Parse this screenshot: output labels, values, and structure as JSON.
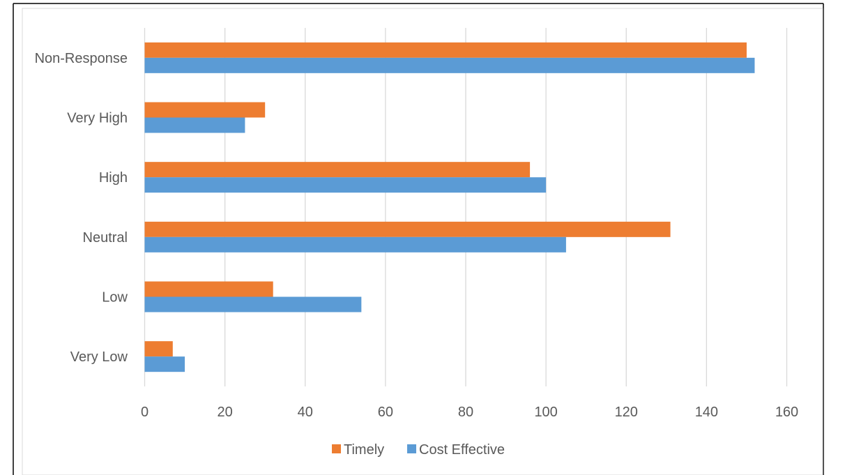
{
  "chart_data": {
    "type": "bar",
    "orientation": "horizontal",
    "categories": [
      "Very Low",
      "Low",
      "Neutral",
      "High",
      "Very High",
      "Non-Response"
    ],
    "series": [
      {
        "name": "Timely",
        "color": "#ED7D31",
        "values": [
          7,
          32,
          131,
          96,
          30,
          150
        ]
      },
      {
        "name": "Cost Effective",
        "color": "#5B9BD5",
        "values": [
          10,
          54,
          105,
          100,
          25,
          152
        ]
      }
    ],
    "xlim": [
      0,
      160
    ],
    "xticks": [
      0,
      20,
      40,
      60,
      80,
      100,
      120,
      140,
      160
    ],
    "title": "",
    "xlabel": "",
    "ylabel": "",
    "grid": "vertical",
    "legend_position": "bottom"
  }
}
